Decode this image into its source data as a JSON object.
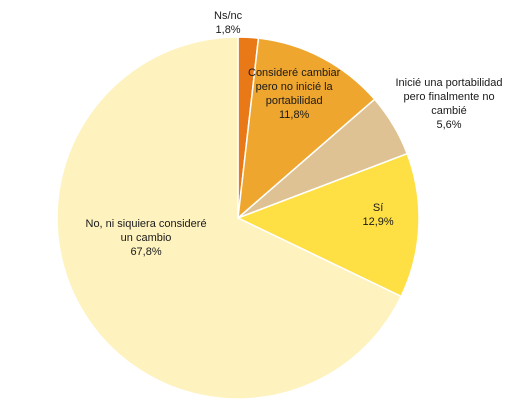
{
  "chart_data": {
    "type": "pie",
    "title": "",
    "slices": [
      {
        "label": [
          "Ns/nc"
        ],
        "value_label": "1,8%",
        "value": 1.8,
        "color": "#E97817"
      },
      {
        "label": [
          "Consideré cambiar",
          "pero no inicié la",
          "portabilidad"
        ],
        "value_label": "11,8%",
        "value": 11.8,
        "color": "#EFA62E"
      },
      {
        "label": [
          "Inicié una portabilidad",
          "pero finalmente no",
          "cambié"
        ],
        "value_label": "5,6%",
        "value": 5.6,
        "color": "#DFC293"
      },
      {
        "label": [
          "Sí"
        ],
        "value_label": "12,9%",
        "value": 12.9,
        "color": "#FEDF44"
      },
      {
        "label": [
          "No, ni siquiera consideré",
          "un cambio"
        ],
        "value_label": "67,8%",
        "value": 67.8,
        "color": "#FEF2BF"
      }
    ],
    "start_angle": "12 o'clock",
    "direction": "clockwise",
    "legend": "none",
    "labels": "on slices / outside"
  }
}
